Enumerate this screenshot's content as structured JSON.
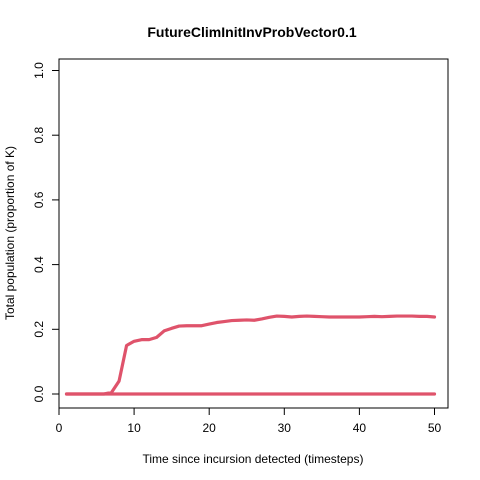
{
  "chart_data": {
    "type": "line",
    "title": "FutureClimInitInvProbVector0.1",
    "xlabel": "Time since incursion detected (timesteps)",
    "ylabel": "Total population (proportion of K)",
    "xlim": [
      1,
      50
    ],
    "ylim": [
      0,
      1
    ],
    "x_ticks": [
      0,
      10,
      20,
      30,
      40,
      50
    ],
    "y_ticks": [
      0.0,
      0.2,
      0.4,
      0.6,
      0.8,
      1.0
    ],
    "y_tick_labels": [
      "0.0",
      "0.2",
      "0.4",
      "0.6",
      "0.8",
      "1.0"
    ],
    "grid": false,
    "series_color": "#DF536B",
    "series": [
      {
        "x": [
          1,
          2,
          3,
          4,
          5,
          6,
          7,
          8,
          9,
          10,
          11,
          12,
          13,
          14,
          15,
          16,
          17,
          18,
          19,
          20,
          21,
          22,
          23,
          24,
          25,
          26,
          27,
          28,
          29,
          30,
          31,
          32,
          33,
          34,
          35,
          36,
          37,
          38,
          39,
          40,
          41,
          42,
          43,
          44,
          45,
          46,
          47,
          48,
          49,
          50
        ],
        "y": [
          0,
          0,
          0,
          0,
          0,
          0,
          0.005,
          0.04,
          0.15,
          0.163,
          0.168,
          0.168,
          0.175,
          0.195,
          0.203,
          0.21,
          0.211,
          0.211,
          0.211,
          0.216,
          0.221,
          0.224,
          0.227,
          0.228,
          0.229,
          0.228,
          0.232,
          0.237,
          0.241,
          0.24,
          0.238,
          0.24,
          0.241,
          0.24,
          0.239,
          0.238,
          0.238,
          0.238,
          0.238,
          0.238,
          0.239,
          0.24,
          0.239,
          0.24,
          0.241,
          0.241,
          0.241,
          0.24,
          0.24,
          0.238
        ]
      },
      {
        "x": [
          1,
          2,
          3,
          4,
          5,
          6,
          7,
          8,
          9,
          10,
          11,
          12,
          13,
          14,
          15,
          16,
          17,
          18,
          19,
          20,
          21,
          22,
          23,
          24,
          25,
          26,
          27,
          28,
          29,
          30,
          31,
          32,
          33,
          34,
          35,
          36,
          37,
          38,
          39,
          40,
          41,
          42,
          43,
          44,
          45,
          46,
          47,
          48,
          49,
          50
        ],
        "y": [
          0,
          0,
          0,
          0,
          0,
          0,
          0,
          0,
          0,
          0,
          0,
          0,
          0,
          0,
          0,
          0,
          0,
          0,
          0,
          0,
          0,
          0,
          0,
          0,
          0,
          0,
          0,
          0,
          0,
          0,
          0,
          0,
          0,
          0,
          0,
          0,
          0,
          0,
          0,
          0,
          0,
          0,
          0,
          0,
          0,
          0,
          0,
          0,
          0,
          0
        ]
      }
    ]
  }
}
